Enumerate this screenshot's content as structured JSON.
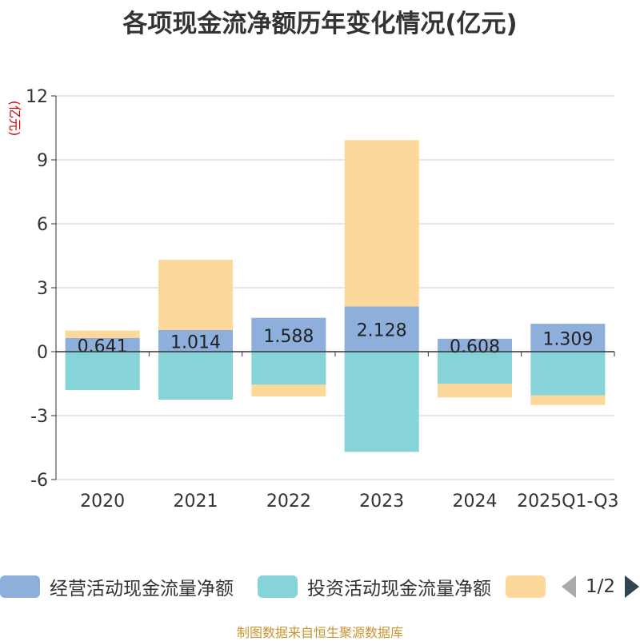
{
  "title": "各项现金流净额历年变化情况(亿元)",
  "source": "制图数据来自恒生聚源数据库",
  "legend": {
    "items": [
      {
        "label": "经营活动现金流量净额",
        "color": "#8eaedc"
      },
      {
        "label": "投资活动现金流量净额",
        "color": "#86d4d7"
      },
      {
        "label": "",
        "color": "#fdd89b"
      }
    ],
    "page": "1/2"
  },
  "chart_data": {
    "type": "bar",
    "stacked": true,
    "title": "各项现金流净额历年变化情况(亿元)",
    "ylabel": "(亿元)",
    "xlabel": "",
    "ylim": [
      -6,
      12
    ],
    "yticks": [
      12,
      9,
      6,
      3,
      0,
      -3,
      -6
    ],
    "yticklabels": [
      "12",
      "9",
      "6",
      "3",
      "0",
      "-3",
      "-6"
    ],
    "grid": true,
    "categories": [
      "2020",
      "2021",
      "2022",
      "2023",
      "2024",
      "2025Q1-Q3"
    ],
    "series": [
      {
        "name": "经营活动现金流量净额",
        "color": "#8eaedc",
        "values": [
          0.641,
          1.014,
          1.588,
          2.128,
          0.608,
          1.309
        ],
        "labels": [
          "0.641",
          "1.014",
          "1.588",
          "2.128",
          "0.608",
          "1.309"
        ]
      },
      {
        "name": "投资活动现金流量净额",
        "color": "#86d4d7",
        "values": [
          -1.8,
          -2.25,
          -1.55,
          -4.7,
          -1.5,
          -2.05
        ]
      },
      {
        "name": "",
        "color": "#fdd89b",
        "values": [
          0.35,
          3.3,
          -0.55,
          7.8,
          -0.65,
          -0.45
        ]
      }
    ]
  }
}
